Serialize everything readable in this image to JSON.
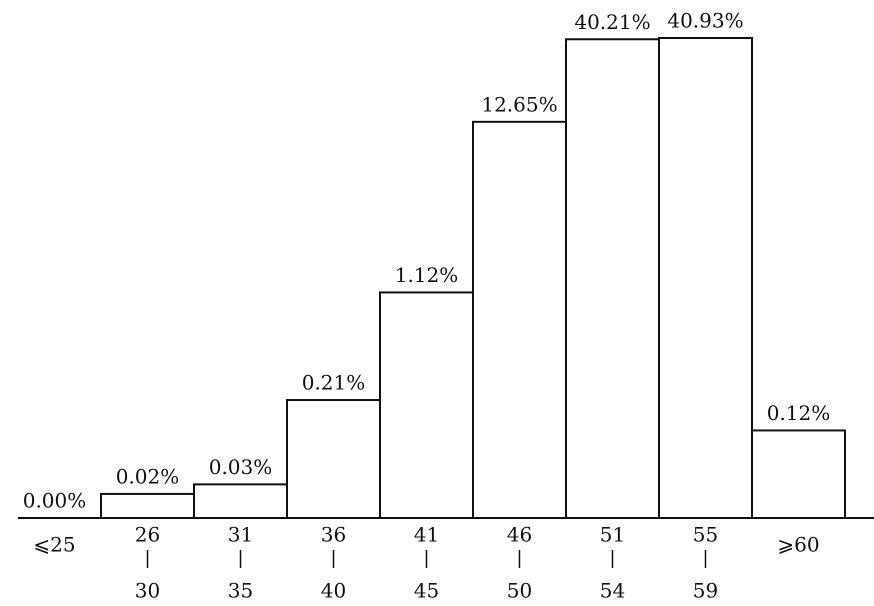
{
  "chart_data": {
    "type": "bar",
    "color": "#111111",
    "categories": [
      [
        "⩽25"
      ],
      [
        "26",
        "30"
      ],
      [
        "31",
        "35"
      ],
      [
        "36",
        "40"
      ],
      [
        "41",
        "45"
      ],
      [
        "46",
        "50"
      ],
      [
        "51",
        "54"
      ],
      [
        "55",
        "59"
      ],
      [
        "⩾60"
      ]
    ],
    "values": [
      0,
      0.02,
      0.03,
      0.21,
      1.12,
      12.65,
      40.21,
      40.93,
      0.12
    ],
    "value_labels": [
      "0.00%",
      "0.02%",
      "0.03%",
      "0.21%",
      "1.12%",
      "12.65%",
      "40.21%",
      "40.93%",
      "0.12%"
    ]
  }
}
